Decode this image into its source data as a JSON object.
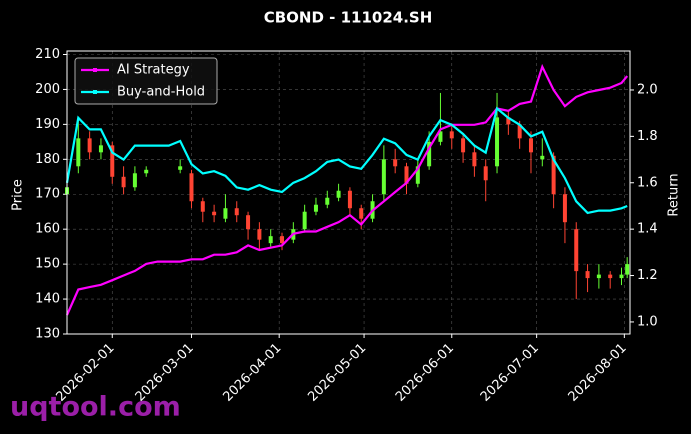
{
  "chart_data": {
    "type": "candlestick",
    "title": "CBOND - 111024.SH",
    "y_label": "Price",
    "y2_label": "Return",
    "x": [
      "2026-01-16",
      "2026-01-20",
      "2026-01-24",
      "2026-01-28",
      "2026-02-01",
      "2026-02-05",
      "2026-02-09",
      "2026-02-13",
      "2026-02-17",
      "2026-02-21",
      "2026-02-25",
      "2026-03-01",
      "2026-03-05",
      "2026-03-09",
      "2026-03-13",
      "2026-03-17",
      "2026-03-21",
      "2026-03-25",
      "2026-03-29",
      "2026-04-02",
      "2026-04-06",
      "2026-04-10",
      "2026-04-14",
      "2026-04-18",
      "2026-04-22",
      "2026-04-26",
      "2026-04-30",
      "2026-05-04",
      "2026-05-08",
      "2026-05-12",
      "2026-05-16",
      "2026-05-20",
      "2026-05-24",
      "2026-05-28",
      "2026-06-01",
      "2026-06-05",
      "2026-06-09",
      "2026-06-13",
      "2026-06-17",
      "2026-06-21",
      "2026-06-25",
      "2026-06-29",
      "2026-07-03",
      "2026-07-07",
      "2026-07-11",
      "2026-07-15",
      "2026-07-19",
      "2026-07-23",
      "2026-07-27",
      "2026-07-31",
      "2026-08-02"
    ],
    "open": [
      170,
      178,
      186,
      182,
      184,
      175,
      172,
      176,
      null,
      null,
      177,
      176,
      168,
      165,
      163,
      166,
      164,
      160,
      156,
      158,
      157,
      160,
      165,
      167,
      169,
      171,
      166,
      163,
      170,
      180,
      178,
      173,
      178,
      185,
      188,
      186,
      182,
      178,
      178,
      192,
      190,
      186,
      180,
      181,
      170,
      160,
      148,
      146,
      147,
      146,
      147
    ],
    "high": [
      175,
      192,
      188,
      186,
      185,
      178,
      178,
      178,
      null,
      null,
      180,
      177,
      169,
      167,
      170,
      168,
      165,
      162,
      160,
      159,
      162,
      167,
      169,
      171,
      173,
      172,
      167,
      170,
      184,
      183,
      179,
      180,
      188,
      199,
      190,
      187,
      184,
      180,
      199,
      194,
      191,
      188,
      186,
      182,
      172,
      162,
      150,
      150,
      148,
      149,
      152
    ],
    "low": [
      168,
      176,
      180,
      180,
      173,
      170,
      171,
      175,
      null,
      null,
      176,
      166,
      162,
      162,
      162,
      162,
      157,
      154,
      155,
      154,
      156,
      159,
      164,
      166,
      168,
      164,
      160,
      162,
      168,
      176,
      170,
      172,
      177,
      184,
      183,
      179,
      175,
      168,
      176,
      187,
      183,
      176,
      178,
      166,
      156,
      140,
      142,
      143,
      143,
      144,
      146
    ],
    "close": [
      172,
      186,
      182,
      184,
      175,
      172,
      176,
      177,
      null,
      null,
      178,
      168,
      165,
      164,
      166,
      164,
      160,
      157,
      158,
      156,
      160,
      165,
      167,
      169,
      171,
      166,
      163,
      168,
      180,
      178,
      173,
      178,
      185,
      188,
      186,
      182,
      178,
      174,
      192,
      190,
      186,
      182,
      181,
      170,
      162,
      148,
      146,
      147,
      146,
      147,
      150
    ],
    "up_color": "#66ff33",
    "down_color": "#ff4433",
    "series": [
      {
        "name": "AI Strategy",
        "color": "#ff00ff",
        "axis": "y2",
        "values": [
          1.03,
          1.14,
          1.15,
          1.16,
          1.18,
          1.2,
          1.22,
          1.25,
          1.26,
          1.26,
          1.26,
          1.27,
          1.27,
          1.29,
          1.29,
          1.3,
          1.33,
          1.31,
          1.32,
          1.33,
          1.38,
          1.39,
          1.39,
          1.41,
          1.43,
          1.46,
          1.42,
          1.48,
          1.52,
          1.56,
          1.6,
          1.66,
          1.75,
          1.83,
          1.85,
          1.85,
          1.85,
          1.86,
          1.92,
          1.91,
          1.94,
          1.95,
          2.1,
          2.0,
          1.93,
          1.97,
          1.99,
          2.0,
          2.01,
          2.03,
          2.06
        ]
      },
      {
        "name": "Buy-and-Hold",
        "color": "#00ffff",
        "axis": "y2",
        "values": [
          1.6,
          1.88,
          1.83,
          1.83,
          1.73,
          1.7,
          1.76,
          1.76,
          1.76,
          1.76,
          1.78,
          1.68,
          1.64,
          1.65,
          1.63,
          1.58,
          1.57,
          1.59,
          1.57,
          1.56,
          1.6,
          1.62,
          1.65,
          1.69,
          1.7,
          1.67,
          1.66,
          1.72,
          1.79,
          1.77,
          1.72,
          1.7,
          1.8,
          1.87,
          1.85,
          1.81,
          1.76,
          1.73,
          1.92,
          1.88,
          1.85,
          1.8,
          1.82,
          1.7,
          1.62,
          1.52,
          1.47,
          1.48,
          1.48,
          1.49,
          1.5
        ]
      }
    ],
    "xlim": [
      "2026-01-16",
      "2026-08-03"
    ],
    "xticks": [
      "2026-02-01",
      "2026-03-01",
      "2026-04-01",
      "2026-05-01",
      "2026-06-01",
      "2026-07-01",
      "2026-08-01"
    ],
    "ylim": [
      130,
      211
    ],
    "yticks": [
      130,
      140,
      150,
      160,
      170,
      180,
      190,
      200,
      210
    ],
    "y2lim": [
      0.948,
      2.168
    ],
    "y2ticks": [
      {
        "value": 1,
        "label": "1.0"
      },
      {
        "value": 1.2,
        "label": "1.2"
      },
      {
        "value": 1.4,
        "label": "1.4"
      },
      {
        "value": 1.6,
        "label": "1.6"
      },
      {
        "value": 1.8,
        "label": "1.8"
      },
      {
        "value": 2,
        "label": "2.0"
      }
    ],
    "grid": true,
    "legend": "upper left"
  },
  "watermark": "uqtool.com"
}
